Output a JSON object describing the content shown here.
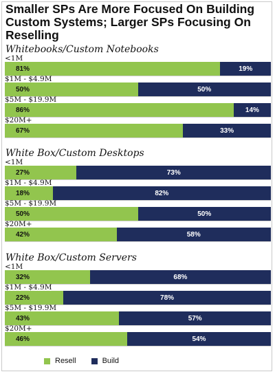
{
  "title": "Smaller SPs Are More Focused On Building Custom Systems; Larger SPs Focusing On Reselling",
  "legend": {
    "resell_label": "Resell",
    "build_label": "Build"
  },
  "colors": {
    "resell": "#92c54e",
    "build": "#1f2d5c"
  },
  "chart_data": [
    {
      "type": "bar",
      "orientation": "horizontal-stacked-100",
      "title": "Whitebooks/Custom Notebooks",
      "categories": [
        "<1M",
        "$1M - $4.9M",
        "$5M - $19.9M",
        "$20M+"
      ],
      "series": [
        {
          "name": "Resell",
          "values": [
            81,
            50,
            86,
            67
          ],
          "labels": [
            "81%",
            "50%",
            "86%",
            "67%"
          ]
        },
        {
          "name": "Build",
          "values": [
            19,
            50,
            14,
            33
          ],
          "labels": [
            "19%",
            "50%",
            "14%",
            "33%"
          ]
        }
      ],
      "xlim": [
        0,
        100
      ]
    },
    {
      "type": "bar",
      "orientation": "horizontal-stacked-100",
      "title": "White Box/Custom Desktops",
      "categories": [
        "<1M",
        "$1M - $4.9M",
        "$5M - $19.9M",
        "$20M+"
      ],
      "series": [
        {
          "name": "Resell",
          "values": [
            27,
            18,
            50,
            42
          ],
          "labels": [
            "27%",
            "18%",
            "50%",
            "42%"
          ]
        },
        {
          "name": "Build",
          "values": [
            73,
            82,
            50,
            58
          ],
          "labels": [
            "73%",
            "82%",
            "50%",
            "58%"
          ]
        }
      ],
      "xlim": [
        0,
        100
      ]
    },
    {
      "type": "bar",
      "orientation": "horizontal-stacked-100",
      "title": "White Box/Custom Servers",
      "categories": [
        "<1M",
        "$1M - $4.9M",
        "$5M - $19.9M",
        "$20M+"
      ],
      "series": [
        {
          "name": "Resell",
          "values": [
            32,
            22,
            43,
            46
          ],
          "labels": [
            "32%",
            "22%",
            "43%",
            "46%"
          ]
        },
        {
          "name": "Build",
          "values": [
            68,
            78,
            57,
            54
          ],
          "labels": [
            "68%",
            "78%",
            "57%",
            "54%"
          ]
        }
      ],
      "xlim": [
        0,
        100
      ]
    }
  ]
}
